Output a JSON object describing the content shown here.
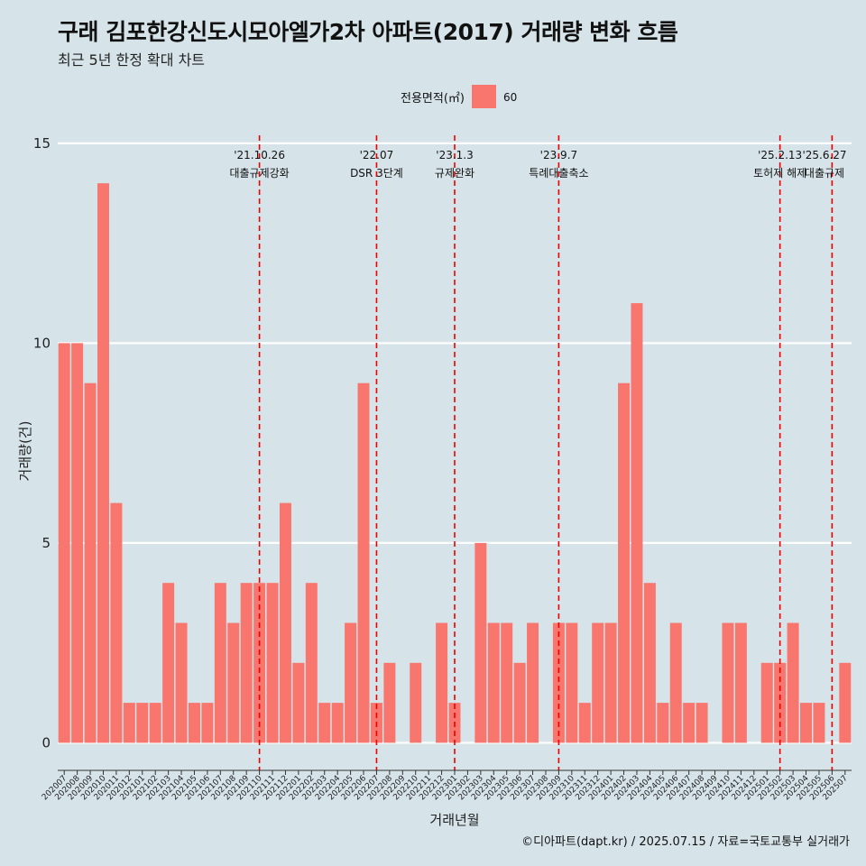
{
  "header": {
    "title": "구래 김포한강신도시모아엘가2차 아파트(2017) 거래량 변화 흐름",
    "subtitle": "최근 5년 한정 확대 차트"
  },
  "caption": "©디아파트(dapt.kr) / 2025.07.15 / 자료=국토교통부 실거래가",
  "colors": {
    "background": "#d6e4ea",
    "bar": "#f8766d",
    "grid": "#ffffff",
    "event_line": "#ee0000"
  },
  "chart_data": {
    "type": "bar",
    "xlabel": "거래년월",
    "ylabel": "거래량(건)",
    "ylim": [
      -0.6,
      15.2
    ],
    "yticks": [
      0,
      5,
      10,
      15
    ],
    "grid": true,
    "legend": {
      "title": "전용면적(㎡)",
      "placement": "top",
      "entries": [
        "60"
      ]
    },
    "categories": [
      "202007",
      "202008",
      "202009",
      "202010",
      "202011",
      "202012",
      "202101",
      "202102",
      "202103",
      "202104",
      "202105",
      "202106",
      "202107",
      "202108",
      "202109",
      "202110",
      "202111",
      "202112",
      "202201",
      "202202",
      "202203",
      "202204",
      "202205",
      "202206",
      "202207",
      "202208",
      "202209",
      "202210",
      "202211",
      "202212",
      "202301",
      "202302",
      "202303",
      "202304",
      "202305",
      "202306",
      "202307",
      "202308",
      "202309",
      "202310",
      "202311",
      "202312",
      "202401",
      "202402",
      "202403",
      "202404",
      "202405",
      "202406",
      "202407",
      "202408",
      "202409",
      "202410",
      "202411",
      "202412",
      "202501",
      "202502",
      "202503",
      "202504",
      "202505",
      "202506",
      "202507"
    ],
    "series": [
      {
        "name": "60",
        "values": [
          10,
          10,
          9,
          14,
          6,
          1,
          1,
          1,
          4,
          3,
          1,
          1,
          4,
          3,
          4,
          4,
          4,
          6,
          2,
          4,
          1,
          1,
          3,
          9,
          1,
          2,
          0,
          2,
          0,
          3,
          1,
          0,
          5,
          3,
          3,
          2,
          3,
          0,
          3,
          3,
          1,
          3,
          3,
          9,
          11,
          4,
          1,
          3,
          1,
          1,
          0,
          3,
          3,
          0,
          2,
          2,
          3,
          1,
          1,
          0,
          2
        ]
      }
    ],
    "events": [
      {
        "category": "202110",
        "date": "'21.10.26",
        "label": "대출규제강화"
      },
      {
        "category": "202207",
        "date": "'22.07",
        "label": "DSR 3단계"
      },
      {
        "category": "202301",
        "date": "'23.1.3",
        "label": "규제완화"
      },
      {
        "category": "202309",
        "date": "'23.9.7",
        "label": "특례대출축소"
      },
      {
        "category": "202502",
        "date": "'25.2.13",
        "label": "토허제 해제"
      },
      {
        "category": "202506",
        "date": "'25.6.27",
        "label": "대출규제"
      }
    ]
  }
}
